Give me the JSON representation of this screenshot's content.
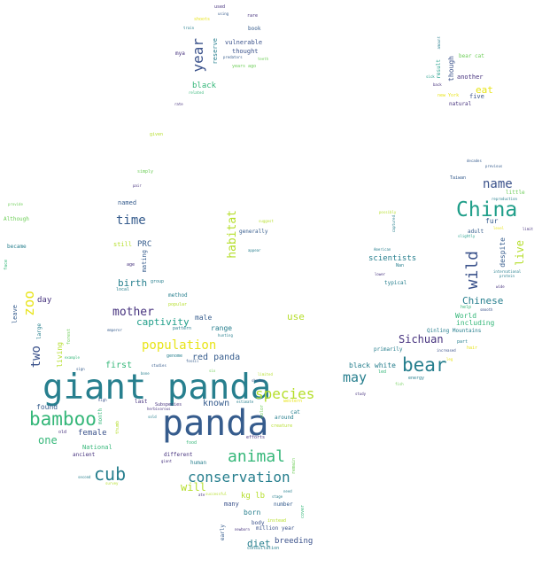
{
  "palette": {
    "dark_purple": "#46327e",
    "indigo": "#3b528b",
    "blue": "#365c8d",
    "teal_blue": "#277f8e",
    "teal": "#1f9e89",
    "green": "#35b779",
    "light_green": "#6ece58",
    "lime": "#b5de2b",
    "yellow": "#e8e419"
  },
  "words": [
    "giant panda",
    "panda",
    "China",
    "bear",
    "conservation",
    "bamboo",
    "cub",
    "species",
    "animal",
    "population",
    "wild",
    "name",
    "time",
    "year",
    "Sichuan",
    "may",
    "two",
    "mother",
    "captivity",
    "zoo",
    "habitat",
    "live",
    "use",
    "Chinese",
    "known",
    "red panda",
    "one",
    "birth",
    "first",
    "female",
    "will",
    "black",
    "eat",
    "diet",
    "breeding",
    "kg lb",
    "born",
    "scientists",
    "black white",
    "World",
    "including",
    "Qinling Mountains",
    "adult",
    "fur",
    "despite",
    "range",
    "male",
    "day",
    "found",
    "leave",
    "PRC",
    "mating",
    "still",
    "named",
    "living",
    "National",
    "ancient",
    "many",
    "number",
    "human",
    "different",
    "food",
    "vulnerable",
    "thought",
    "reserve",
    "book",
    "mya",
    "another",
    "five",
    "natural",
    "result",
    "though",
    "bear cat",
    "little",
    "reproduction",
    "Taiwan",
    "decades",
    "previous",
    "international",
    "protein",
    "typical",
    "primarily",
    "Nan",
    "American",
    "energy",
    "fish",
    "part",
    "help",
    "large",
    "old",
    "method",
    "popular",
    "pattern",
    "genome",
    "Subspecies",
    "last",
    "high",
    "month",
    "thumb",
    "million year",
    "body",
    "early",
    "instead",
    "consultation",
    "around",
    "creature",
    "cat",
    "efforts",
    "generally",
    "given",
    "simply",
    "pair",
    "provide",
    "Although",
    "became",
    "face",
    "age",
    "group",
    "local",
    "emperor",
    "fossil",
    "studies",
    "bone",
    "western",
    "estimate",
    "color",
    "limited",
    "sign",
    "forest",
    "example",
    "rate",
    "related",
    "predators",
    "teeth",
    "years ago",
    "used",
    "using",
    "rare",
    "shoots",
    "train",
    "level",
    "lower",
    "study",
    "wide",
    "herbivorous",
    "sold",
    "giant",
    "second",
    "survey",
    "newborn",
    "amount",
    "remain",
    "cover",
    "suggest",
    "appear",
    "possibly",
    "captured",
    "ate",
    "need",
    "stage",
    "led",
    "successful",
    "increased",
    "six",
    "shadow",
    "hunting",
    "new York",
    "sick",
    "back",
    "slightly",
    "hair",
    "leg",
    "limit",
    "smooth",
    "around2"
  ]
}
